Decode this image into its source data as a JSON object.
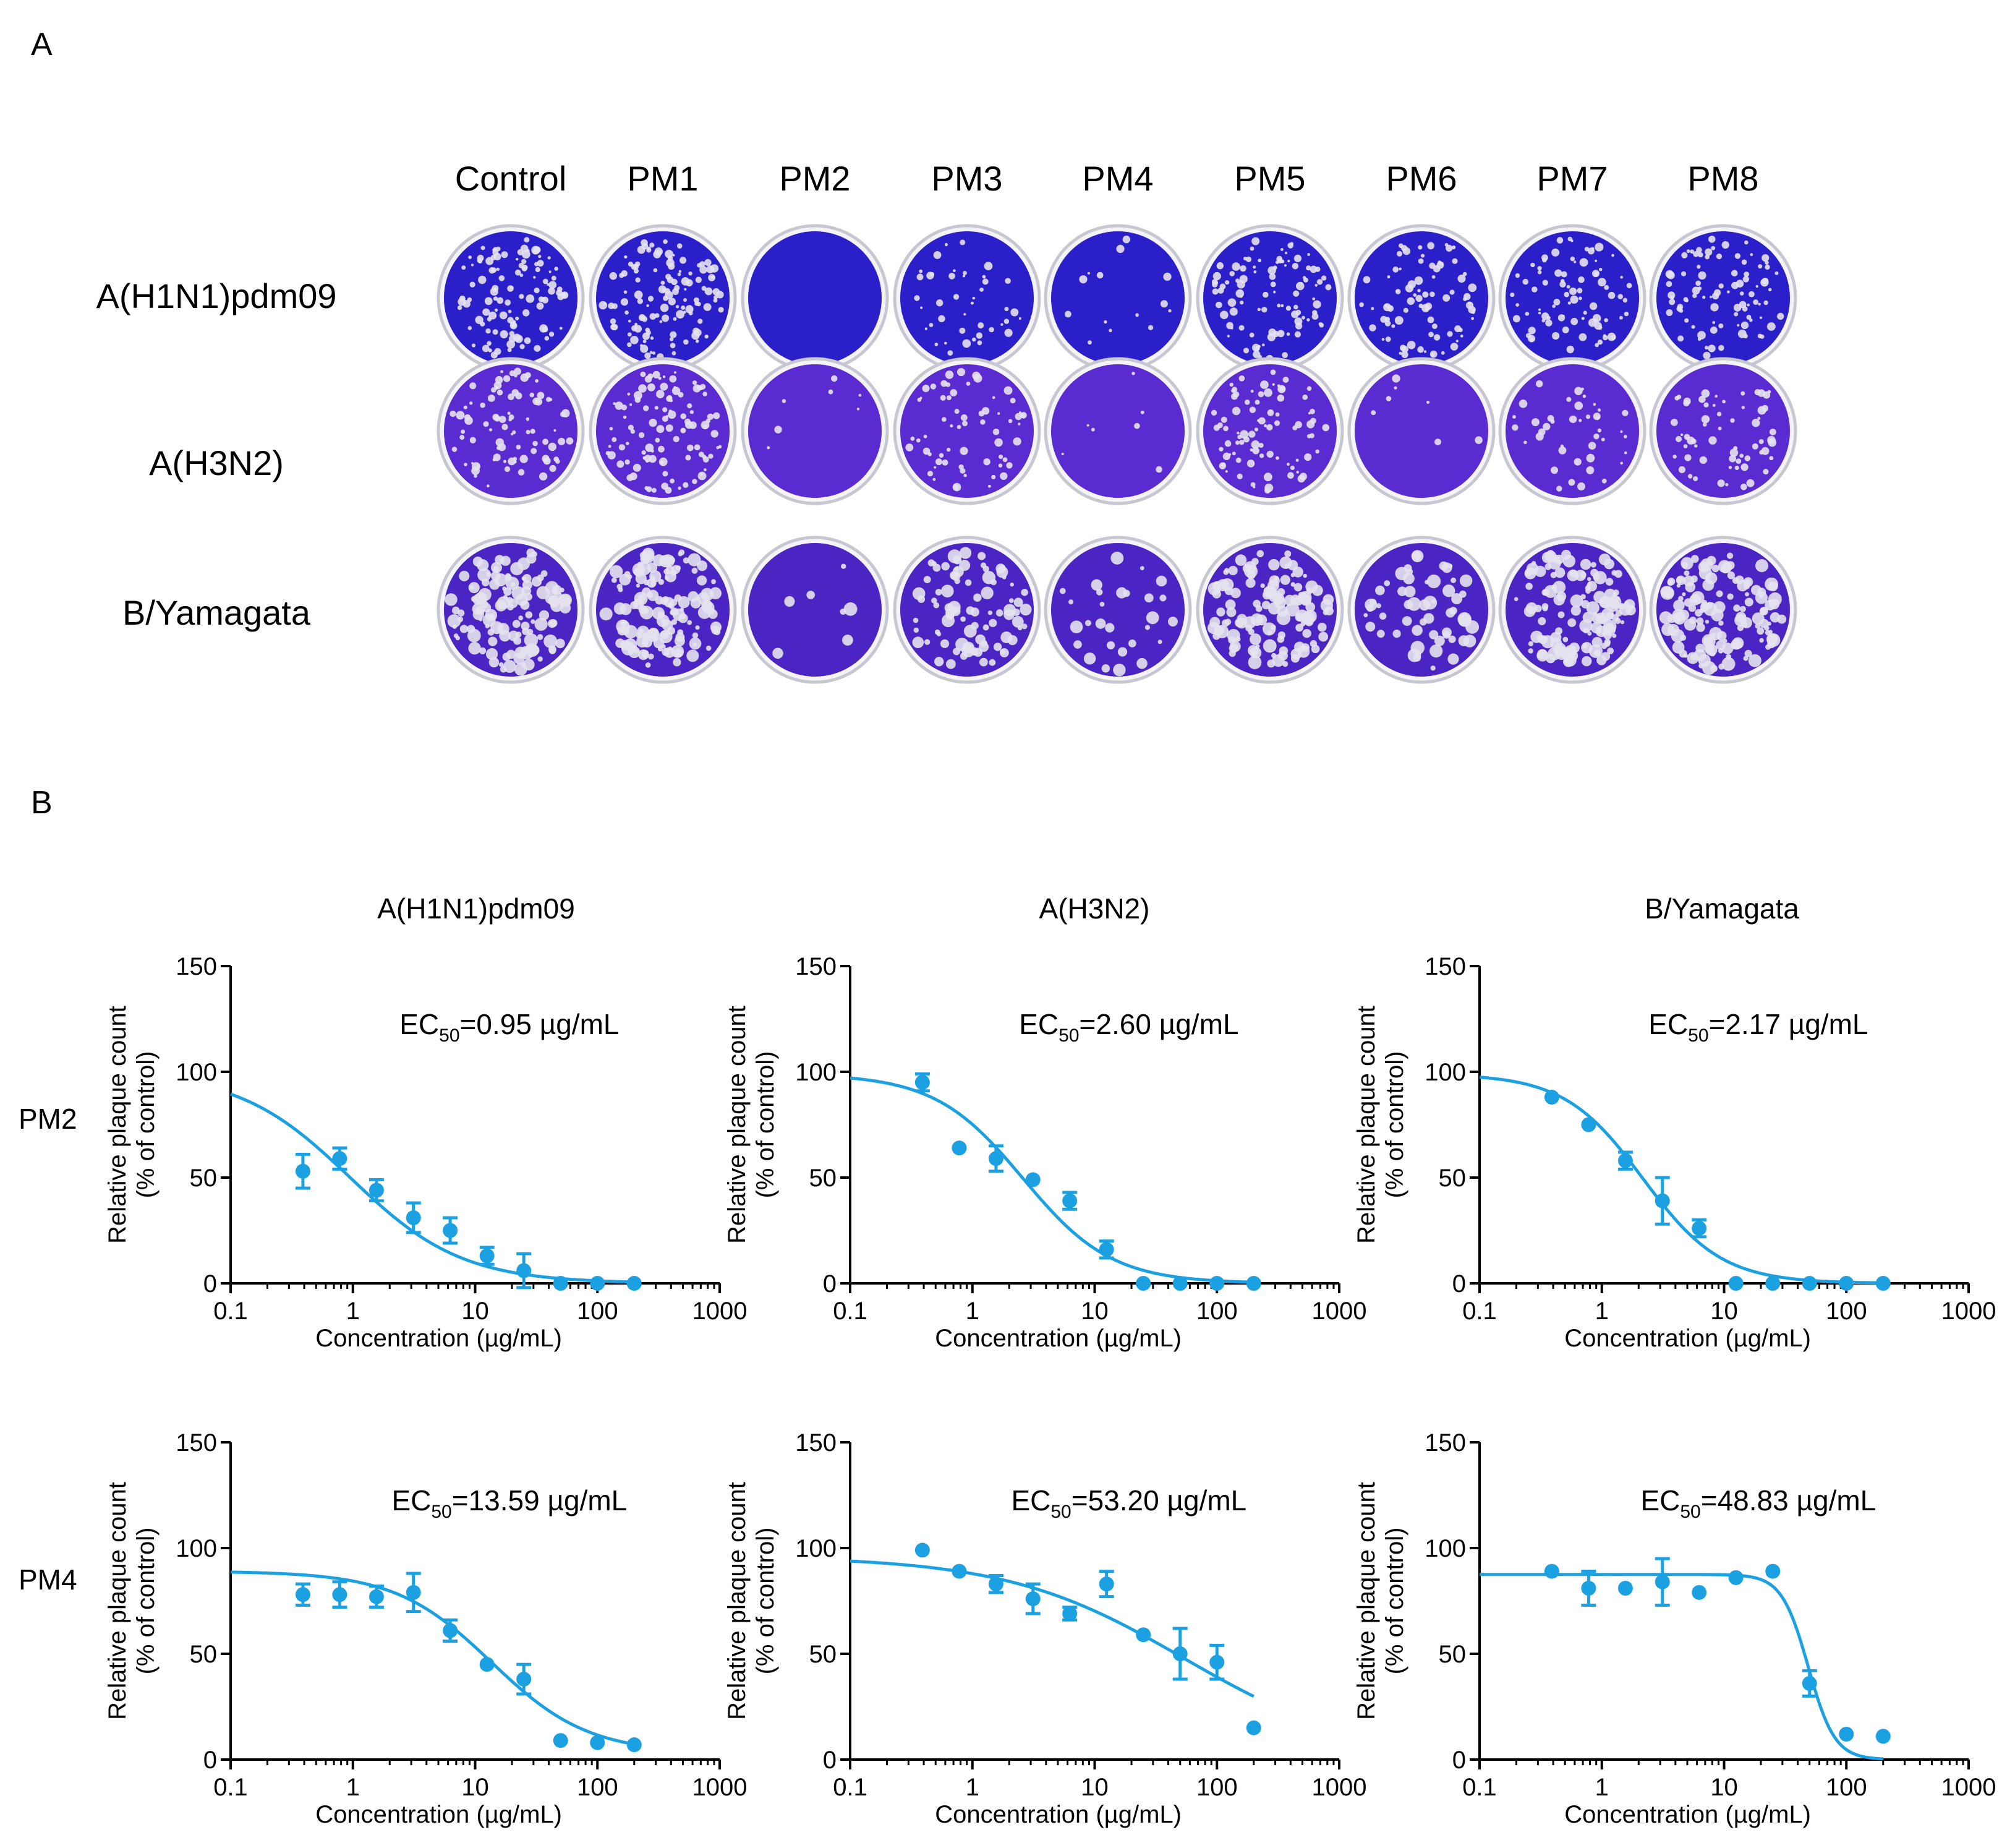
{
  "panel_labels": {
    "a": "A",
    "b": "B"
  },
  "plate_columns": [
    "Control",
    "PM1",
    "PM2",
    "PM3",
    "PM4",
    "PM5",
    "PM6",
    "PM7",
    "PM8"
  ],
  "plate_rows": [
    "A(H1N1)pdm09",
    "A(H3N2)",
    "B/Yamagata"
  ],
  "plate_plaque_levels": [
    [
      0.8,
      0.9,
      0.0,
      0.3,
      0.1,
      0.7,
      0.6,
      0.6,
      0.65
    ],
    [
      0.6,
      0.75,
      0.05,
      0.45,
      0.05,
      0.6,
      0.05,
      0.3,
      0.45
    ],
    [
      0.9,
      1.0,
      0.05,
      0.6,
      0.2,
      0.9,
      0.4,
      0.95,
      1.0
    ]
  ],
  "colors": {
    "plate_fill_h1n1": "#2a1fc8",
    "plate_fill_h3n2": "#5a2bd0",
    "plate_fill_byam": "#4a25c4",
    "plaque": "#e6e2ee",
    "plate_rim": "#c7c7d2",
    "curve": "#1ba1e2",
    "axis": "#000000"
  },
  "column_titles": [
    "A(H1N1)pdm09",
    "A(H3N2)",
    "B/Yamagata"
  ],
  "row_drugs": [
    "PM2",
    "PM4"
  ],
  "axis_text": {
    "ylabel_line1": "Relative plaque count",
    "ylabel_line2": "(% of control)",
    "xlabel": "Concentration (µg/mL)",
    "ec_prefix": "EC",
    "ec_subscript": "50",
    "ec_unit": " µg/mL"
  },
  "chart_data": [
    {
      "type": "scatter",
      "drug": "PM2",
      "virus": "A(H1N1)pdm09",
      "ec50": "0.95",
      "xscale": "log",
      "xlim": [
        0.1,
        1000
      ],
      "ylim": [
        0,
        150
      ],
      "xticks": [
        "0.1",
        "1",
        "10",
        "100",
        "1000"
      ],
      "yticks": [
        "0",
        "50",
        "100",
        "150"
      ],
      "x": [
        0.39,
        0.78,
        1.56,
        3.13,
        6.25,
        12.5,
        25,
        50,
        100,
        200
      ],
      "y": [
        53,
        59,
        44,
        31,
        25,
        13,
        6,
        0,
        0,
        0
      ],
      "err": [
        8,
        5,
        5,
        7,
        6,
        4,
        8,
        0,
        0,
        0
      ],
      "fit": {
        "top": 100,
        "bottom": 0,
        "ec50": 0.95,
        "hill": 0.95
      }
    },
    {
      "type": "scatter",
      "drug": "PM2",
      "virus": "A(H3N2)",
      "ec50": "2.60",
      "xscale": "log",
      "xlim": [
        0.1,
        1000
      ],
      "ylim": [
        0,
        150
      ],
      "xticks": [
        "0.1",
        "1",
        "10",
        "100",
        "1000"
      ],
      "yticks": [
        "0",
        "50",
        "100",
        "150"
      ],
      "x": [
        0.39,
        0.78,
        1.56,
        3.13,
        6.25,
        12.5,
        25,
        50,
        100,
        200
      ],
      "y": [
        95,
        64,
        59,
        49,
        39,
        16,
        0,
        0,
        0,
        0
      ],
      "err": [
        4,
        0,
        6,
        0,
        4,
        4,
        0,
        0,
        0,
        0
      ],
      "fit": {
        "top": 99,
        "bottom": 0,
        "ec50": 2.6,
        "hill": 1.2
      }
    },
    {
      "type": "scatter",
      "drug": "PM2",
      "virus": "B/Yamagata",
      "ec50": "2.17",
      "xscale": "log",
      "xlim": [
        0.1,
        1000
      ],
      "ylim": [
        0,
        150
      ],
      "xticks": [
        "0.1",
        "1",
        "10",
        "100",
        "1000"
      ],
      "yticks": [
        "0",
        "50",
        "100",
        "150"
      ],
      "x": [
        0.39,
        0.78,
        1.56,
        3.13,
        6.25,
        12.5,
        25,
        50,
        100,
        200
      ],
      "y": [
        88,
        75,
        58,
        39,
        26,
        0,
        0,
        0,
        0,
        0
      ],
      "err": [
        0,
        0,
        4,
        11,
        4,
        0,
        0,
        0,
        0,
        0
      ],
      "fit": {
        "top": 99,
        "bottom": 0,
        "ec50": 2.17,
        "hill": 1.35
      }
    },
    {
      "type": "scatter",
      "drug": "PM4",
      "virus": "A(H1N1)pdm09",
      "ec50": "13.59",
      "xscale": "log",
      "xlim": [
        0.1,
        1000
      ],
      "ylim": [
        0,
        150
      ],
      "xticks": [
        "0.1",
        "1",
        "10",
        "100",
        "1000"
      ],
      "yticks": [
        "0",
        "50",
        "100",
        "150"
      ],
      "x": [
        0.39,
        0.78,
        1.56,
        3.13,
        6.25,
        12.5,
        25,
        50,
        100,
        200
      ],
      "y": [
        78,
        78,
        77,
        79,
        61,
        45,
        38,
        9,
        8,
        7
      ],
      "err": [
        5,
        6,
        5,
        9,
        5,
        0,
        7,
        0,
        0,
        0
      ],
      "fit": {
        "top": 89,
        "bottom": 3,
        "ec50": 13.59,
        "hill": 1.1
      }
    },
    {
      "type": "scatter",
      "drug": "PM4",
      "virus": "A(H3N2)",
      "ec50": "53.20",
      "xscale": "log",
      "xlim": [
        0.1,
        1000
      ],
      "ylim": [
        0,
        150
      ],
      "xticks": [
        "0.1",
        "1",
        "10",
        "100",
        "1000"
      ],
      "yticks": [
        "0",
        "50",
        "100",
        "150"
      ],
      "x": [
        0.39,
        0.78,
        1.56,
        3.13,
        6.25,
        12.5,
        25,
        50,
        100,
        200
      ],
      "y": [
        99,
        89,
        83,
        76,
        69,
        83,
        59,
        50,
        46,
        15
      ],
      "err": [
        0,
        0,
        4,
        7,
        3,
        6,
        0,
        12,
        8,
        0
      ],
      "fit": {
        "top": 96,
        "bottom": 0,
        "ec50": 53.2,
        "hill": 0.6
      }
    },
    {
      "type": "scatter",
      "drug": "PM4",
      "virus": "B/Yamagata",
      "ec50": "48.83",
      "xscale": "log",
      "xlim": [
        0.1,
        1000
      ],
      "ylim": [
        0,
        150
      ],
      "xticks": [
        "0.1",
        "1",
        "10",
        "100",
        "1000"
      ],
      "yticks": [
        "0",
        "50",
        "100",
        "150"
      ],
      "x": [
        0.39,
        0.78,
        1.56,
        3.13,
        6.25,
        12.5,
        25,
        50,
        100,
        200
      ],
      "y": [
        89,
        81,
        81,
        84,
        79,
        86,
        89,
        36,
        12,
        11
      ],
      "err": [
        0,
        8,
        0,
        11,
        0,
        0,
        0,
        6,
        0,
        0
      ],
      "fit": {
        "top": 87.5,
        "bottom": 0,
        "ec50": 48.83,
        "hill": 4.0
      }
    }
  ]
}
